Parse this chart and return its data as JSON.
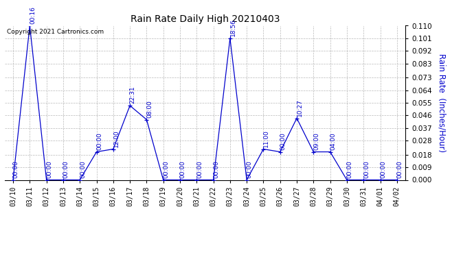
{
  "title": "Rain Rate Daily High 20210403",
  "ylabel": "Rain Rate  (Inches/Hour)",
  "copyright": "Copyright 2021 Cartronics.com",
  "background_color": "#ffffff",
  "line_color": "#0000cc",
  "grid_color": "#b0b0b0",
  "ylim": [
    0.0,
    0.11
  ],
  "yticks": [
    0.0,
    0.009,
    0.018,
    0.028,
    0.037,
    0.046,
    0.055,
    0.064,
    0.073,
    0.083,
    0.092,
    0.101,
    0.11
  ],
  "x_dates": [
    "03/10",
    "03/11",
    "03/12",
    "03/13",
    "03/14",
    "03/15",
    "03/16",
    "03/17",
    "03/18",
    "03/19",
    "03/20",
    "03/21",
    "03/22",
    "03/23",
    "03/24",
    "03/25",
    "03/26",
    "03/27",
    "03/28",
    "03/29",
    "03/30",
    "03/31",
    "04/01",
    "04/02"
  ],
  "data_points": [
    {
      "x": 0,
      "value": 0.0,
      "label": "00:00"
    },
    {
      "x": 1,
      "value": 0.11,
      "label": "00:16"
    },
    {
      "x": 2,
      "value": 0.0,
      "label": "00:00"
    },
    {
      "x": 3,
      "value": 0.0,
      "label": "00:00"
    },
    {
      "x": 4,
      "value": 0.0,
      "label": "00:00"
    },
    {
      "x": 5,
      "value": 0.02,
      "label": "00:00"
    },
    {
      "x": 6,
      "value": 0.022,
      "label": "12:00"
    },
    {
      "x": 7,
      "value": 0.053,
      "label": "22:31"
    },
    {
      "x": 8,
      "value": 0.043,
      "label": "08:00"
    },
    {
      "x": 9,
      "value": 0.0,
      "label": "00:00"
    },
    {
      "x": 10,
      "value": 0.0,
      "label": "00:00"
    },
    {
      "x": 11,
      "value": 0.0,
      "label": "00:00"
    },
    {
      "x": 12,
      "value": 0.0,
      "label": "00:00"
    },
    {
      "x": 13,
      "value": 0.101,
      "label": "18:56"
    },
    {
      "x": 14,
      "value": 0.0,
      "label": "00:00"
    },
    {
      "x": 15,
      "value": 0.022,
      "label": "11:00"
    },
    {
      "x": 16,
      "value": 0.02,
      "label": "00:00"
    },
    {
      "x": 17,
      "value": 0.044,
      "label": "10:27"
    },
    {
      "x": 18,
      "value": 0.02,
      "label": "09:00"
    },
    {
      "x": 19,
      "value": 0.02,
      "label": "04:00"
    },
    {
      "x": 20,
      "value": 0.0,
      "label": "00:00"
    },
    {
      "x": 21,
      "value": 0.0,
      "label": "00:00"
    },
    {
      "x": 22,
      "value": 0.0,
      "label": "00:00"
    },
    {
      "x": 23,
      "value": 0.0,
      "label": "00:00"
    }
  ]
}
